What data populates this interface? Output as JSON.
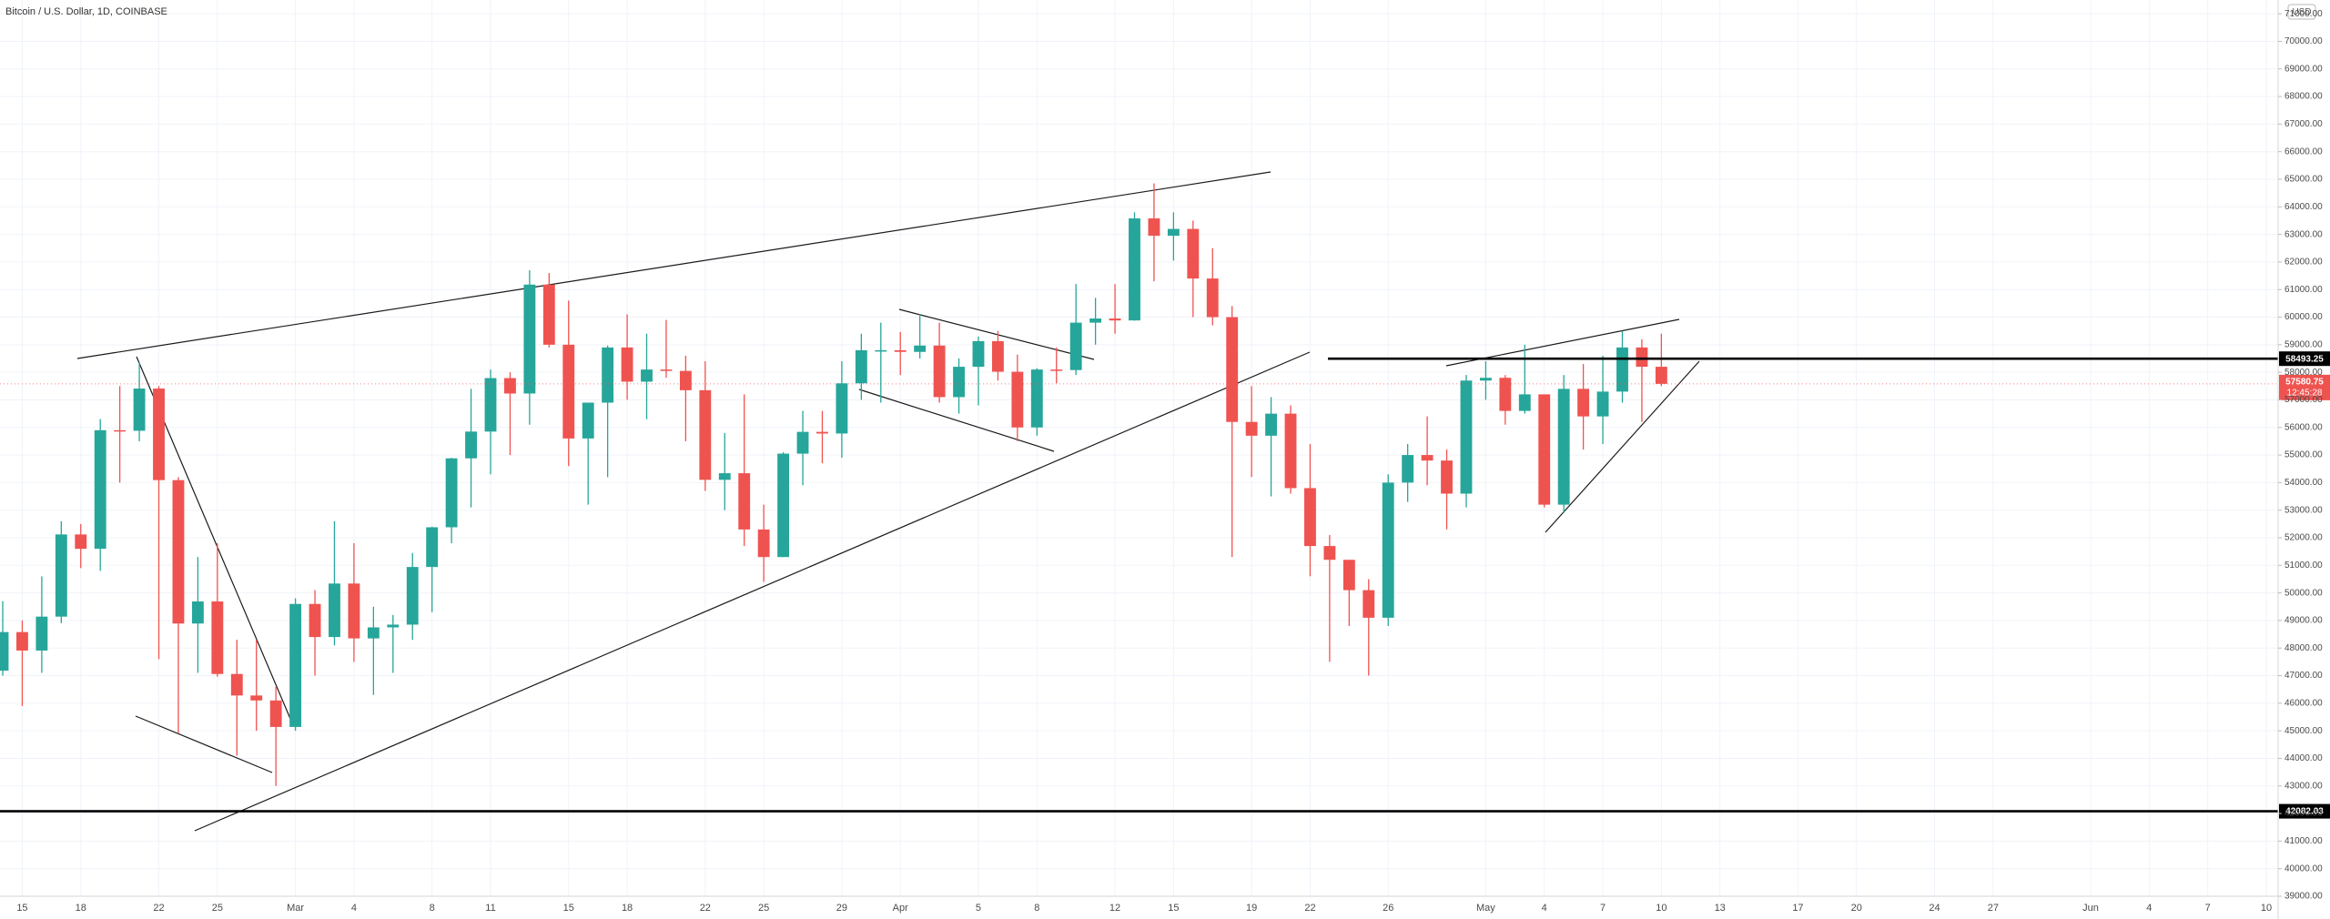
{
  "chart_data": {
    "type": "candlestick",
    "title": "Bitcoin / U.S. Dollar, 1D, COINBASE",
    "currency": "USD",
    "up_color": "#26a69a",
    "down_color": "#ef5350",
    "grid": true,
    "x": [
      "Feb 14",
      "Feb 15",
      "Feb 16",
      "Feb 17",
      "Feb 18",
      "Feb 19",
      "Feb 20",
      "Feb 21",
      "Feb 22",
      "Feb 23",
      "Feb 24",
      "Feb 25",
      "Feb 26",
      "Feb 27",
      "Feb 28",
      "Mar 1",
      "Mar 2",
      "Mar 3",
      "Mar 4",
      "Mar 5",
      "Mar 6",
      "Mar 7",
      "Mar 8",
      "Mar 9",
      "Mar 10",
      "Mar 11",
      "Mar 12",
      "Mar 13",
      "Mar 14",
      "Mar 15",
      "Mar 16",
      "Mar 17",
      "Mar 18",
      "Mar 19",
      "Mar 20",
      "Mar 21",
      "Mar 22",
      "Mar 23",
      "Mar 24",
      "Mar 25",
      "Mar 26",
      "Mar 27",
      "Mar 28",
      "Mar 29",
      "Mar 30",
      "Mar 31",
      "Apr 1",
      "Apr 2",
      "Apr 3",
      "Apr 4",
      "Apr 5",
      "Apr 6",
      "Apr 7",
      "Apr 8",
      "Apr 9",
      "Apr 10",
      "Apr 11",
      "Apr 12",
      "Apr 13",
      "Apr 14",
      "Apr 15",
      "Apr 16",
      "Apr 17",
      "Apr 18",
      "Apr 19",
      "Apr 20",
      "Apr 21",
      "Apr 22",
      "Apr 23",
      "Apr 24",
      "Apr 25",
      "Apr 26",
      "Apr 27",
      "Apr 28",
      "Apr 29",
      "Apr 30",
      "May 1",
      "May 2",
      "May 3",
      "May 4",
      "May 5",
      "May 6",
      "May 7",
      "May 8",
      "May 9",
      "May 10"
    ],
    "open": [
      47180,
      48580,
      47910,
      49140,
      52120,
      51600,
      55900,
      55880,
      57410,
      54090,
      48890,
      49690,
      47060,
      46280,
      46100,
      45140,
      49600,
      48400,
      50340,
      48350,
      48750,
      48850,
      50940,
      52380,
      54880,
      55850,
      57790,
      57230,
      61180,
      59000,
      55600,
      56900,
      58900,
      57660,
      58100,
      58050,
      57350,
      54100,
      54340,
      52300,
      51300,
      55050,
      55840,
      55780,
      57600,
      58800,
      58800,
      58740,
      58970,
      57100,
      58200,
      59130,
      58020,
      56000,
      58100,
      58080,
      59800,
      59950,
      59880,
      63580,
      62950,
      63200,
      61400,
      60000,
      56200,
      55700,
      56500,
      53800,
      51700,
      51200,
      50100,
      49100,
      54000,
      55000,
      54800,
      53600,
      57700,
      57800,
      56600,
      57200,
      53200,
      57400,
      56400,
      57300,
      58900,
      58200
    ],
    "high": [
      49700,
      49000,
      50600,
      52600,
      52500,
      56300,
      57500,
      58350,
      57500,
      54200,
      51300,
      51800,
      48300,
      48300,
      46600,
      49800,
      50100,
      52600,
      51800,
      49500,
      49200,
      51450,
      52400,
      54900,
      57400,
      58100,
      58000,
      61700,
      61600,
      60600,
      56900,
      58970,
      60100,
      59400,
      59900,
      58600,
      58400,
      55800,
      57200,
      53200,
      55100,
      56600,
      56600,
      58400,
      59400,
      59800,
      59460,
      60100,
      59800,
      58500,
      59300,
      59500,
      58640,
      58150,
      58900,
      61200,
      60700,
      61200,
      63800,
      64850,
      63800,
      63500,
      62500,
      60400,
      57500,
      57100,
      56800,
      55400,
      52100,
      51200,
      50500,
      54300,
      55400,
      56400,
      55200,
      57900,
      58400,
      57900,
      59000,
      57200,
      57900,
      58300,
      58600,
      59500,
      59200,
      59400
    ],
    "low": [
      47000,
      45900,
      47100,
      48900,
      50900,
      50800,
      54000,
      55500,
      47600,
      44900,
      47100,
      46960,
      44100,
      45000,
      43000,
      45000,
      47000,
      48100,
      47500,
      46300,
      47100,
      48300,
      49300,
      51800,
      53100,
      54300,
      55000,
      56100,
      58900,
      54600,
      53200,
      54200,
      57000,
      56300,
      57800,
      55500,
      53700,
      53000,
      51700,
      50400,
      51300,
      53900,
      54700,
      54900,
      57000,
      56900,
      57900,
      58500,
      56900,
      56500,
      56800,
      57700,
      55500,
      55700,
      57600,
      57900,
      59000,
      59400,
      59870,
      61300,
      62050,
      60000,
      59700,
      51300,
      54200,
      53500,
      53600,
      50600,
      47500,
      48800,
      47000,
      48800,
      53300,
      53900,
      52300,
      53100,
      57000,
      56100,
      56500,
      53100,
      52900,
      55200,
      55400,
      56900,
      56200,
      57500
    ],
    "close": [
      48580,
      47910,
      49140,
      52120,
      51600,
      55900,
      55880,
      57410,
      54090,
      48890,
      49690,
      47060,
      46280,
      46100,
      45140,
      49600,
      48400,
      50340,
      48350,
      48750,
      48850,
      50940,
      52380,
      54880,
      55850,
      57790,
      57230,
      61180,
      59000,
      55600,
      56900,
      58900,
      57660,
      58100,
      58050,
      57350,
      54100,
      54340,
      52300,
      51300,
      55050,
      55840,
      55780,
      57600,
      58800,
      58800,
      58740,
      58970,
      57100,
      58200,
      59130,
      58020,
      56000,
      58100,
      58080,
      59800,
      59950,
      59880,
      63580,
      62950,
      63200,
      61400,
      60000,
      56200,
      55700,
      56500,
      53800,
      51700,
      51200,
      50100,
      49100,
      54000,
      55000,
      54800,
      53600,
      57700,
      57800,
      56600,
      57200,
      53200,
      57400,
      56400,
      57300,
      58900,
      58200,
      57580.75
    ],
    "xlim": [
      "Feb 14",
      "Jun 10"
    ],
    "xticks": [
      {
        "value": "Feb 15",
        "label": "15"
      },
      {
        "value": "Feb 18",
        "label": "18"
      },
      {
        "value": "Feb 22",
        "label": "22"
      },
      {
        "value": "Feb 25",
        "label": "25"
      },
      {
        "value": "Mar 1",
        "label": "Mar"
      },
      {
        "value": "Mar 4",
        "label": "4"
      },
      {
        "value": "Mar 8",
        "label": "8"
      },
      {
        "value": "Mar 11",
        "label": "11"
      },
      {
        "value": "Mar 15",
        "label": "15"
      },
      {
        "value": "Mar 18",
        "label": "18"
      },
      {
        "value": "Mar 22",
        "label": "22"
      },
      {
        "value": "Mar 25",
        "label": "25"
      },
      {
        "value": "Mar 29",
        "label": "29"
      },
      {
        "value": "Apr 1",
        "label": "Apr"
      },
      {
        "value": "Apr 5",
        "label": "5"
      },
      {
        "value": "Apr 8",
        "label": "8"
      },
      {
        "value": "Apr 12",
        "label": "12"
      },
      {
        "value": "Apr 15",
        "label": "15"
      },
      {
        "value": "Apr 19",
        "label": "19"
      },
      {
        "value": "Apr 22",
        "label": "22"
      },
      {
        "value": "Apr 26",
        "label": "26"
      },
      {
        "value": "May 1",
        "label": "May"
      },
      {
        "value": "May 4",
        "label": "4"
      },
      {
        "value": "May 7",
        "label": "7"
      },
      {
        "value": "May 10",
        "label": "10"
      },
      {
        "value": "May 13",
        "label": "13"
      },
      {
        "value": "May 17",
        "label": "17"
      },
      {
        "value": "May 20",
        "label": "20"
      },
      {
        "value": "May 24",
        "label": "24"
      },
      {
        "value": "May 27",
        "label": "27"
      },
      {
        "value": "Jun 1",
        "label": "Jun"
      },
      {
        "value": "Jun 4",
        "label": "4"
      },
      {
        "value": "Jun 7",
        "label": "7"
      },
      {
        "value": "Jun 10",
        "label": "10"
      }
    ],
    "ylim": [
      39000,
      71500
    ],
    "yticks": [
      {
        "value": 39000,
        "label": "39000.00"
      },
      {
        "value": 40000,
        "label": "40000.00"
      },
      {
        "value": 41000,
        "label": "41000.00"
      },
      {
        "value": 42000,
        "label": "42000.00"
      },
      {
        "value": 43000,
        "label": "43000.00"
      },
      {
        "value": 44000,
        "label": "44000.00"
      },
      {
        "value": 45000,
        "label": "45000.00"
      },
      {
        "value": 46000,
        "label": "46000.00"
      },
      {
        "value": 47000,
        "label": "47000.00"
      },
      {
        "value": 48000,
        "label": "48000.00"
      },
      {
        "value": 49000,
        "label": "49000.00"
      },
      {
        "value": 50000,
        "label": "50000.00"
      },
      {
        "value": 51000,
        "label": "51000.00"
      },
      {
        "value": 52000,
        "label": "52000.00"
      },
      {
        "value": 53000,
        "label": "53000.00"
      },
      {
        "value": 54000,
        "label": "54000.00"
      },
      {
        "value": 55000,
        "label": "55000.00"
      },
      {
        "value": 56000,
        "label": "56000.00"
      },
      {
        "value": 57000,
        "label": "57000.00"
      },
      {
        "value": 58000,
        "label": "58000.00"
      },
      {
        "value": 59000,
        "label": "59000.00"
      },
      {
        "value": 60000,
        "label": "60000.00"
      },
      {
        "value": 61000,
        "label": "61000.00"
      },
      {
        "value": 62000,
        "label": "62000.00"
      },
      {
        "value": 63000,
        "label": "63000.00"
      },
      {
        "value": 64000,
        "label": "64000.00"
      },
      {
        "value": 65000,
        "label": "65000.00"
      },
      {
        "value": 66000,
        "label": "66000.00"
      },
      {
        "value": 67000,
        "label": "67000.00"
      },
      {
        "value": 68000,
        "label": "68000.00"
      },
      {
        "value": 69000,
        "label": "69000.00"
      },
      {
        "value": 70000,
        "label": "70000.00"
      },
      {
        "value": 71000,
        "label": "71000.00"
      }
    ],
    "hlines": [
      58493.25,
      42082.03
    ],
    "last_price": 57580.75,
    "countdown": "12:45:28"
  }
}
